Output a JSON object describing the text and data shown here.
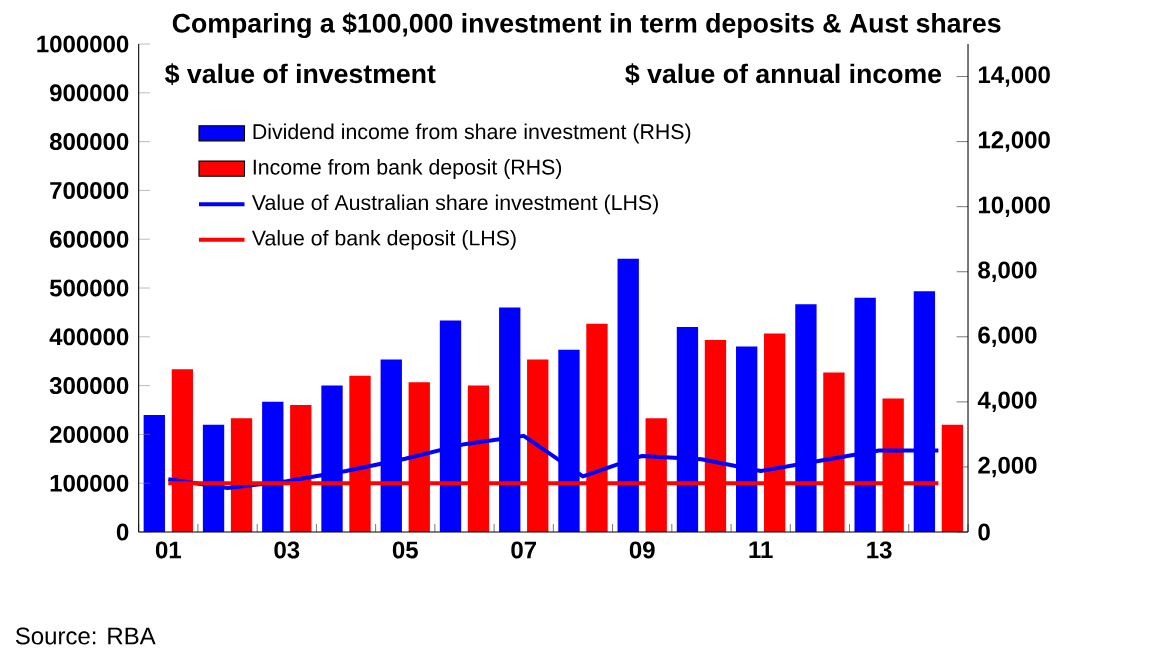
{
  "chart_data": {
    "type": "bar",
    "title": "Comparing a $100,000 investment in term deposits & Aust shares",
    "ylabel": "$ value of investment",
    "y2label": "$ value of annual income",
    "categories": [
      "01",
      null,
      "03",
      null,
      "05",
      null,
      "07",
      null,
      "09",
      null,
      "11",
      null,
      "13",
      null
    ],
    "series": [
      {
        "name": "Dividend income from share investment (RHS)",
        "axis": "y2",
        "color": "#0000ff",
        "values": [
          3600,
          3300,
          4000,
          4500,
          5300,
          6500,
          6900,
          5600,
          8400,
          6300,
          5700,
          7000,
          7200,
          7400
        ]
      },
      {
        "name": "Income from bank deposit (RHS)",
        "axis": "y2",
        "color": "#ff0000",
        "values": [
          5000,
          3500,
          3900,
          4800,
          4600,
          4500,
          5300,
          6400,
          3500,
          5900,
          6100,
          4900,
          4100,
          3300
        ]
      },
      {
        "name": "Value of Australian share investment (LHS)",
        "type": "line",
        "axis": "y",
        "color": "#0000ff",
        "values": [
          108000,
          90000,
          104000,
          125000,
          150000,
          180000,
          197000,
          114000,
          156000,
          149000,
          125000,
          146000,
          167000,
          167000
        ]
      },
      {
        "name": "Value of bank deposit (LHS)",
        "type": "line",
        "axis": "y",
        "color": "#ff0000",
        "values": [
          100000,
          100000,
          100000,
          100000,
          100000,
          100000,
          100000,
          100000,
          100000,
          100000,
          100000,
          100000,
          100000,
          100000
        ]
      }
    ],
    "ylim": [
      0,
      1000000
    ],
    "yticks": [
      0,
      100000,
      200000,
      300000,
      400000,
      500000,
      600000,
      700000,
      800000,
      900000,
      1000000
    ],
    "y2lim": [
      0,
      15000
    ],
    "y2ticks": [
      0,
      {
        "value": 2000,
        "label": "2,000"
      },
      {
        "value": 4000,
        "label": "4,000"
      },
      {
        "value": 6000,
        "label": "6,000"
      },
      {
        "value": 8000,
        "label": "8,000"
      },
      {
        "value": 10000,
        "label": "10,000"
      },
      {
        "value": 12000,
        "label": "12,000"
      },
      {
        "value": 14000,
        "label": "14,000"
      }
    ],
    "legend": "top left",
    "annotations": [
      "Source: RBA"
    ]
  }
}
